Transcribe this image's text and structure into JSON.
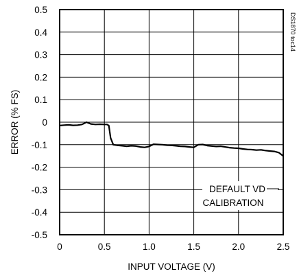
{
  "chart_data": {
    "type": "line",
    "xlabel": "INPUT VOLTAGE (V)",
    "ylabel": "ERROR (% FS)",
    "xlim": [
      0,
      2.5
    ],
    "ylim": [
      -0.5,
      0.5
    ],
    "x_ticks": [
      "0",
      "0.5",
      "1.0",
      "1.5",
      "2.0",
      "2.5"
    ],
    "y_ticks": [
      "0.5",
      "0.4",
      "0.3",
      "0.2",
      "0.1",
      "0",
      "-0.1",
      "-0.2",
      "-0.3",
      "-0.4",
      "-0.5"
    ],
    "grid": true,
    "annotation": [
      "DEFAULT VD",
      "CALIBRATION"
    ],
    "figure_id": "DS1870 toc14",
    "series": [
      {
        "color": "#000000",
        "x": [
          0,
          0.05,
          0.1,
          0.15,
          0.2,
          0.25,
          0.3,
          0.35,
          0.4,
          0.45,
          0.5,
          0.53,
          0.55,
          0.57,
          0.6,
          0.65,
          0.7,
          0.75,
          0.8,
          0.85,
          0.9,
          0.95,
          1.0,
          1.05,
          1.1,
          1.15,
          1.2,
          1.25,
          1.3,
          1.35,
          1.4,
          1.45,
          1.5,
          1.55,
          1.6,
          1.65,
          1.7,
          1.75,
          1.8,
          1.85,
          1.9,
          1.95,
          2.0,
          2.05,
          2.1,
          2.15,
          2.2,
          2.25,
          2.3,
          2.35,
          2.4,
          2.45,
          2.5
        ],
        "values": [
          -0.015,
          -0.013,
          -0.012,
          -0.014,
          -0.013,
          -0.01,
          0.0,
          -0.008,
          -0.01,
          -0.009,
          -0.01,
          -0.01,
          -0.015,
          -0.07,
          -0.1,
          -0.103,
          -0.105,
          -0.107,
          -0.105,
          -0.106,
          -0.11,
          -0.112,
          -0.108,
          -0.098,
          -0.099,
          -0.1,
          -0.102,
          -0.103,
          -0.105,
          -0.107,
          -0.108,
          -0.11,
          -0.112,
          -0.1,
          -0.099,
          -0.104,
          -0.106,
          -0.108,
          -0.107,
          -0.11,
          -0.113,
          -0.115,
          -0.116,
          -0.119,
          -0.121,
          -0.122,
          -0.124,
          -0.123,
          -0.126,
          -0.128,
          -0.13,
          -0.135,
          -0.15
        ]
      }
    ]
  }
}
